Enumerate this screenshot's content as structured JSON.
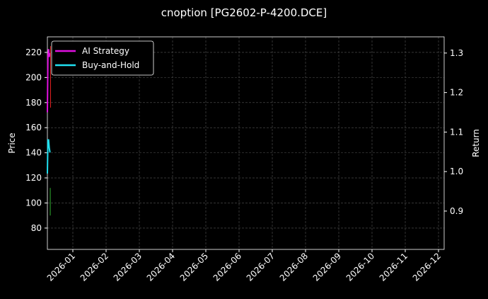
{
  "chart_data": {
    "type": "line",
    "title": "cnoption [PG2602-P-4200.DCE]",
    "ylabel": "Price",
    "y2label": "Return",
    "xlim": [
      -0.766,
      11.17
    ],
    "xticks": [
      {
        "value": 0,
        "label": "2026-01"
      },
      {
        "value": 1,
        "label": "2026-02"
      },
      {
        "value": 2,
        "label": "2026-03"
      },
      {
        "value": 3,
        "label": "2026-04"
      },
      {
        "value": 4,
        "label": "2026-05"
      },
      {
        "value": 5,
        "label": "2026-06"
      },
      {
        "value": 6,
        "label": "2026-07"
      },
      {
        "value": 7,
        "label": "2026-08"
      },
      {
        "value": 8,
        "label": "2026-09"
      },
      {
        "value": 9,
        "label": "2026-10"
      },
      {
        "value": 10,
        "label": "2026-11"
      },
      {
        "value": 11,
        "label": "2026-12"
      }
    ],
    "ylim": [
      63,
      232.4
    ],
    "yticks": [
      80,
      100,
      120,
      140,
      160,
      180,
      200,
      220
    ],
    "y2lim": [
      0.803,
      1.341
    ],
    "y2ticks": [
      0.9,
      1.0,
      1.1,
      1.2,
      1.3
    ],
    "y2tick_labels": [
      "0.9",
      "1.0",
      "1.1",
      "1.2",
      "1.3"
    ],
    "grid": true,
    "legend": "upper left",
    "series": [
      {
        "name": "AI Strategy",
        "color": "#e010e0",
        "axis": "y2",
        "x": [
          -0.766,
          -0.75,
          -0.73,
          -0.71,
          -0.69
        ],
        "values": [
          1.15,
          1.29,
          1.31,
          1.29,
          1.3
        ]
      },
      {
        "name": "Buy-and-Hold",
        "color": "#20e0f0",
        "axis": "y2",
        "x": [
          -0.766,
          -0.75,
          -0.73,
          -0.71,
          -0.69,
          -0.67
        ],
        "values": [
          0.995,
          1.08,
          1.08,
          1.06,
          1.05,
          1.05
        ]
      },
      {
        "color": "#e02020",
        "x": [
          -0.67,
          -0.67
        ],
        "values": [
          225,
          176
        ]
      },
      {
        "color": "#30b030",
        "x": [
          -0.68,
          -0.68
        ],
        "values": [
          112,
          90
        ]
      }
    ]
  }
}
